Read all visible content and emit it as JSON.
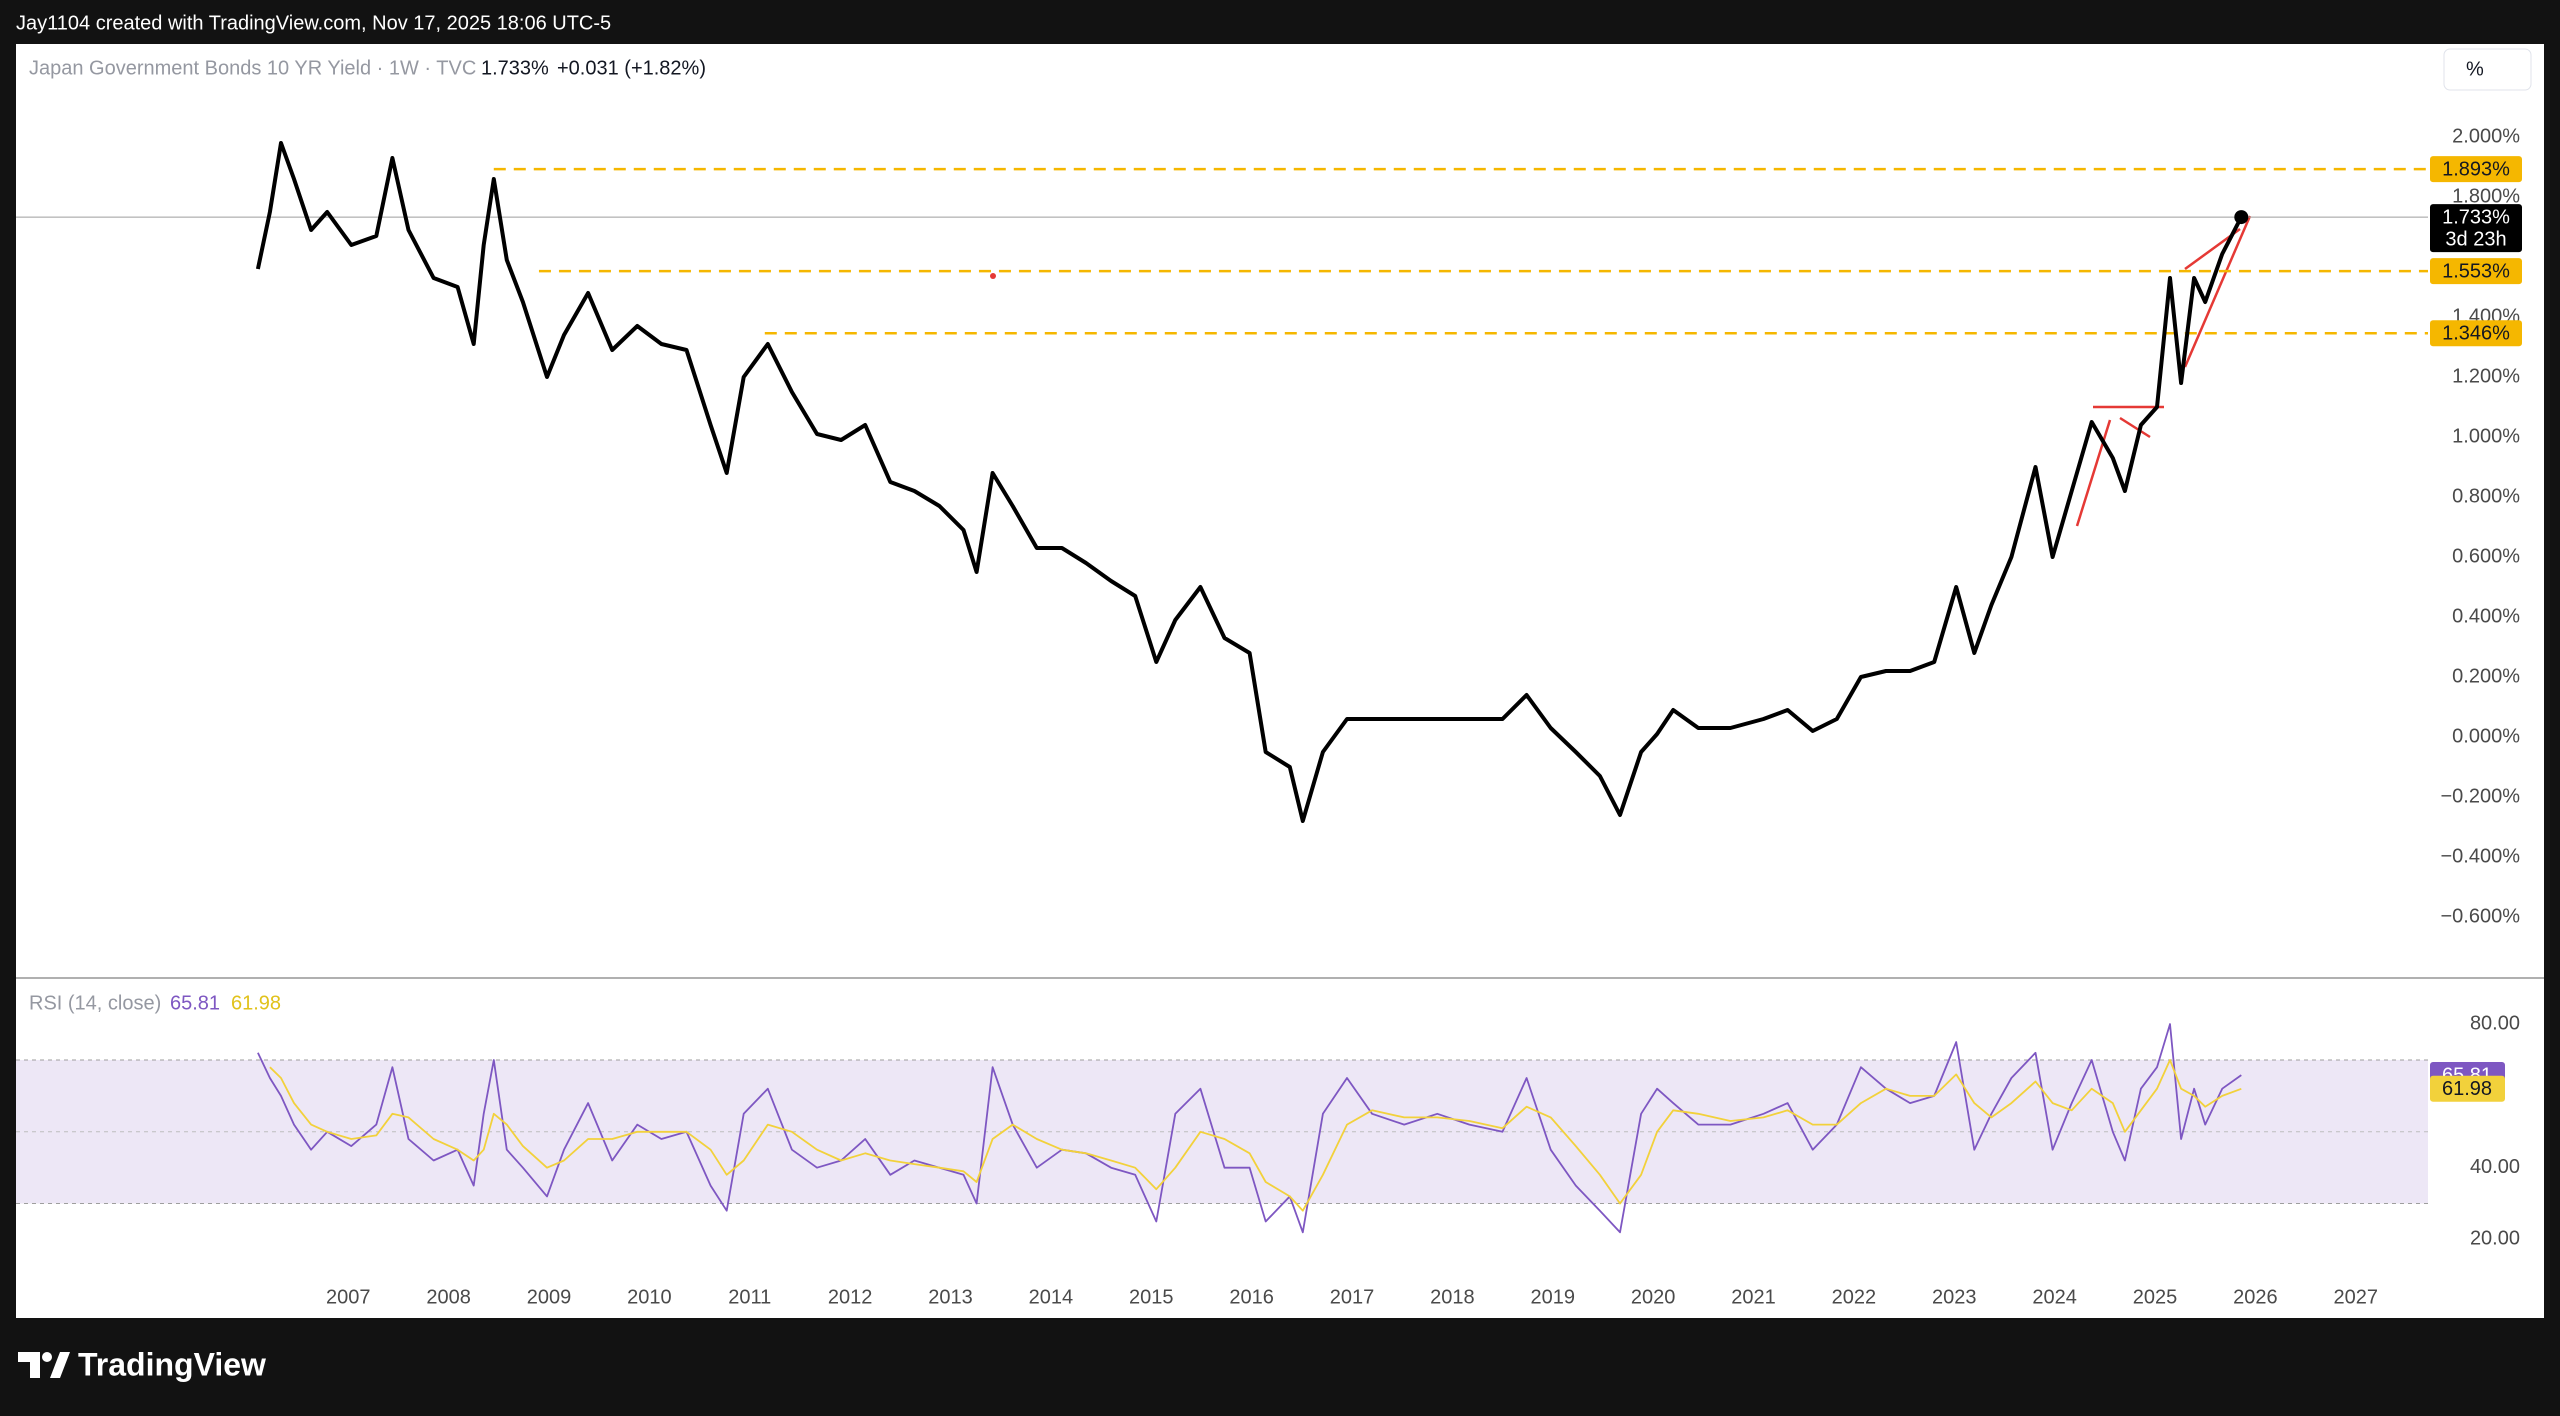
{
  "header": {
    "credit": "Jay1104 created with TradingView.com, Nov 17, 2025 18:06 UTC-5"
  },
  "toolbar": {
    "scale": "%"
  },
  "footer": {
    "brand": "TradingView"
  },
  "chart_data": [
    {
      "type": "line",
      "legend": {
        "symbol": "Japan Government Bonds 10 YR Yield · 1W · TVC",
        "last": "1.733%",
        "change": "+0.031 (+1.82%)"
      },
      "x": [
        2006.1,
        2006.22,
        2006.33,
        2006.46,
        2006.63,
        2006.79,
        2007.03,
        2007.28,
        2007.44,
        2007.6,
        2007.85,
        2008.09,
        2008.25,
        2008.35,
        2008.45,
        2008.58,
        2008.74,
        2008.98,
        2009.15,
        2009.39,
        2009.63,
        2009.88,
        2010.12,
        2010.37,
        2010.61,
        2010.77,
        2010.94,
        2011.18,
        2011.42,
        2011.67,
        2011.91,
        2012.15,
        2012.4,
        2012.64,
        2012.89,
        2013.13,
        2013.26,
        2013.42,
        2013.62,
        2013.86,
        2014.11,
        2014.35,
        2014.6,
        2014.84,
        2015.05,
        2015.24,
        2015.49,
        2015.73,
        2015.98,
        2016.14,
        2016.38,
        2016.51,
        2016.71,
        2016.95,
        2017.2,
        2017.52,
        2017.85,
        2018.17,
        2018.5,
        2018.74,
        2018.98,
        2019.23,
        2019.47,
        2019.67,
        2019.88,
        2020.04,
        2020.2,
        2020.45,
        2020.77,
        2021.1,
        2021.34,
        2021.59,
        2021.83,
        2022.07,
        2022.32,
        2022.56,
        2022.8,
        2023.02,
        2023.2,
        2023.37,
        2023.57,
        2023.81,
        2023.98,
        2024.17,
        2024.37,
        2024.58,
        2024.7,
        2024.86,
        2025.02,
        2025.15,
        2025.26,
        2025.39,
        2025.5,
        2025.67,
        2025.86
      ],
      "series": [
        {
          "color": "#000000",
          "values": [
            1.56,
            1.75,
            1.98,
            1.86,
            1.69,
            1.75,
            1.64,
            1.67,
            1.93,
            1.69,
            1.53,
            1.5,
            1.31,
            1.64,
            1.86,
            1.59,
            1.45,
            1.2,
            1.34,
            1.48,
            1.29,
            1.37,
            1.31,
            1.29,
            1.04,
            0.88,
            1.2,
            1.31,
            1.15,
            1.01,
            0.99,
            1.04,
            0.85,
            0.82,
            0.77,
            0.69,
            0.55,
            0.88,
            0.77,
            0.63,
            0.63,
            0.58,
            0.52,
            0.47,
            0.25,
            0.39,
            0.5,
            0.33,
            0.28,
            -0.05,
            -0.1,
            -0.28,
            -0.05,
            0.06,
            0.06,
            0.06,
            0.06,
            0.06,
            0.06,
            0.14,
            0.03,
            -0.05,
            -0.13,
            -0.26,
            -0.05,
            0.01,
            0.09,
            0.03,
            0.03,
            0.06,
            0.09,
            0.02,
            0.06,
            0.2,
            0.22,
            0.22,
            0.25,
            0.5,
            0.28,
            0.44,
            0.6,
            0.9,
            0.6,
            0.82,
            1.05,
            0.93,
            0.82,
            1.04,
            1.1,
            1.53,
            1.18,
            1.53,
            1.45,
            1.61,
            1.733
          ]
        }
      ],
      "xlim": [
        2003.69,
        2027.72
      ],
      "ylim": [
        -0.8,
        2.31
      ],
      "yticks": [
        {
          "value": 2.0,
          "label": "2.000%"
        },
        {
          "value": 1.8,
          "label": "1.800%"
        },
        {
          "value": 1.4,
          "label": "1.400%"
        },
        {
          "value": 1.2,
          "label": "1.200%"
        },
        {
          "value": 1.0,
          "label": "1.000%"
        },
        {
          "value": 0.8,
          "label": "0.800%"
        },
        {
          "value": 0.6,
          "label": "0.600%"
        },
        {
          "value": 0.4,
          "label": "0.400%"
        },
        {
          "value": 0.2,
          "label": "0.200%"
        },
        {
          "value": 0.0,
          "label": "0.000%"
        },
        {
          "value": -0.2,
          "label": "−0.200%"
        },
        {
          "value": -0.4,
          "label": "−0.400%"
        },
        {
          "value": -0.6,
          "label": "−0.600%"
        }
      ],
      "levels": [
        {
          "value": 1.893,
          "label": "1.893%",
          "from": 2008.45,
          "color": "#f5b700"
        },
        {
          "value": 1.553,
          "label": "1.553%",
          "from": 2008.9,
          "color": "#f5b700"
        },
        {
          "value": 1.346,
          "label": "1.346%",
          "from": 2011.15,
          "color": "#f5b700"
        }
      ],
      "last_value": 1.733,
      "last_label": "1.733%",
      "countdown": "3d 23h"
    },
    {
      "type": "line",
      "title": "RSI (14, close)",
      "x": [
        2006.1,
        2006.22,
        2006.33,
        2006.46,
        2006.63,
        2006.79,
        2007.03,
        2007.28,
        2007.44,
        2007.6,
        2007.85,
        2008.09,
        2008.25,
        2008.35,
        2008.45,
        2008.58,
        2008.74,
        2008.98,
        2009.15,
        2009.39,
        2009.63,
        2009.88,
        2010.12,
        2010.37,
        2010.61,
        2010.77,
        2010.94,
        2011.18,
        2011.42,
        2011.67,
        2011.91,
        2012.15,
        2012.4,
        2012.64,
        2012.89,
        2013.13,
        2013.26,
        2013.42,
        2013.62,
        2013.86,
        2014.11,
        2014.35,
        2014.6,
        2014.84,
        2015.05,
        2015.24,
        2015.49,
        2015.73,
        2015.98,
        2016.14,
        2016.38,
        2016.51,
        2016.71,
        2016.95,
        2017.2,
        2017.52,
        2017.85,
        2018.17,
        2018.5,
        2018.74,
        2018.98,
        2019.23,
        2019.47,
        2019.67,
        2019.88,
        2020.04,
        2020.2,
        2020.45,
        2020.77,
        2021.1,
        2021.34,
        2021.59,
        2021.83,
        2022.07,
        2022.32,
        2022.56,
        2022.8,
        2023.02,
        2023.2,
        2023.37,
        2023.57,
        2023.81,
        2023.98,
        2024.17,
        2024.37,
        2024.58,
        2024.7,
        2024.86,
        2025.02,
        2025.15,
        2025.26,
        2025.39,
        2025.5,
        2025.67,
        2025.86
      ],
      "series": [
        {
          "color": "#7e57c2",
          "values": [
            72,
            65,
            60,
            52,
            45,
            50,
            46,
            52,
            68,
            48,
            42,
            45,
            35,
            55,
            70,
            45,
            40,
            32,
            45,
            58,
            42,
            52,
            48,
            50,
            35,
            28,
            55,
            62,
            45,
            40,
            42,
            48,
            38,
            42,
            40,
            38,
            30,
            68,
            52,
            40,
            45,
            44,
            40,
            38,
            25,
            55,
            62,
            40,
            40,
            25,
            32,
            22,
            55,
            65,
            55,
            52,
            55,
            52,
            50,
            65,
            45,
            35,
            28,
            22,
            55,
            62,
            58,
            52,
            52,
            55,
            58,
            45,
            52,
            68,
            62,
            58,
            60,
            75,
            45,
            55,
            65,
            72,
            45,
            58,
            70,
            50,
            42,
            62,
            68,
            80,
            48,
            62,
            52,
            62,
            65.81
          ]
        },
        {
          "color": "#f2d13b",
          "values": [
            null,
            68,
            65,
            58,
            52,
            50,
            48,
            49,
            55,
            54,
            48,
            45,
            42,
            45,
            55,
            52,
            46,
            40,
            42,
            48,
            48,
            50,
            50,
            50,
            45,
            38,
            42,
            52,
            50,
            45,
            42,
            44,
            42,
            41,
            40,
            39,
            36,
            48,
            52,
            48,
            45,
            44,
            42,
            40,
            34,
            40,
            50,
            48,
            44,
            36,
            32,
            28,
            38,
            52,
            56,
            54,
            54,
            53,
            51,
            57,
            54,
            46,
            38,
            30,
            38,
            50,
            56,
            55,
            53,
            54,
            56,
            52,
            52,
            58,
            62,
            60,
            60,
            66,
            58,
            54,
            58,
            64,
            58,
            56,
            62,
            58,
            50,
            56,
            62,
            70,
            62,
            60,
            57,
            60,
            61.98
          ]
        }
      ],
      "xlim": [
        2003.69,
        2027.72
      ],
      "xticks": [
        2007,
        2008,
        2009,
        2010,
        2011,
        2012,
        2013,
        2014,
        2015,
        2016,
        2017,
        2018,
        2019,
        2020,
        2021,
        2022,
        2023,
        2024,
        2025,
        2026,
        2027
      ],
      "ylim": [
        7.3,
        92.3
      ],
      "yticks": [
        {
          "value": 80,
          "label": "80.00"
        },
        {
          "value": 40,
          "label": "40.00"
        },
        {
          "value": 20,
          "label": "20.00"
        }
      ],
      "bands": [
        30,
        70
      ],
      "midline": 50,
      "band_color": "#ede7f6"
    }
  ]
}
